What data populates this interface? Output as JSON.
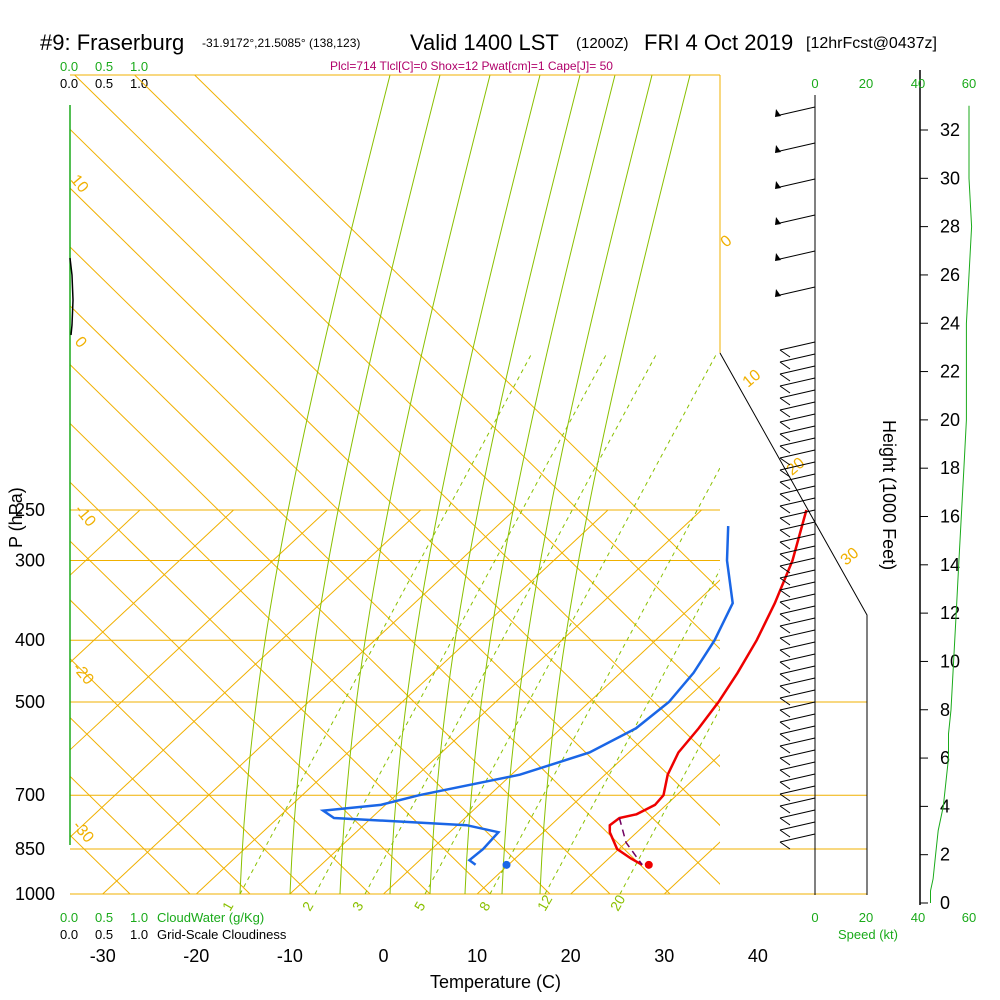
{
  "header": {
    "station": "#9: Fraserburg",
    "coords": "-31.9172°,21.5085° (138,123)",
    "valid": "Valid 1400 LST",
    "utc": "(1200Z)",
    "date": "FRI 4 Oct 2019",
    "forecast": "[12hrFcst@0437z]",
    "indices": "Plcl=714 Tlcl[C]=0 Shox=12 Pwat[cm]=1 Cape[J]= 50"
  },
  "colors": {
    "temperature": "#ee0000",
    "dewpoint": "#1a66e6",
    "isotherm": "#f0b000",
    "isobar": "#f0b000",
    "mixing_ratio": "#8ac000",
    "moist_adiabat": "#8ac000",
    "green_text": "#1aaa1a",
    "parcel": "#700060"
  },
  "legend": {
    "cloudwater_scale_top": [
      "0.0",
      "0.5",
      "1.0"
    ],
    "cloudiness_scale_top": [
      "0.0",
      "0.5",
      "1.0"
    ],
    "cloudwater_scale_bottom": [
      "0.0",
      "0.5",
      "1.0"
    ],
    "cloudiness_scale_bottom": [
      "0.0",
      "0.5",
      "1.0"
    ],
    "cloudwater_label": "CloudWater (g/Kg)",
    "cloudiness_label": "Grid-Scale Cloudiness",
    "speed_label": "Speed (kt)"
  },
  "chart_data": {
    "type": "line",
    "title": "",
    "xlabel": "Temperature (C)",
    "ylabel": "P (hPa)",
    "right_ylabel": "Height (1000 Feet)",
    "xlim": [
      -30,
      40
    ],
    "pressure_ticks": [
      250,
      300,
      400,
      500,
      700,
      850,
      1000
    ],
    "temperature_ticks": [
      -30,
      -20,
      -10,
      0,
      10,
      20,
      30,
      40
    ],
    "height_ticks": [
      0,
      2,
      4,
      6,
      8,
      10,
      12,
      14,
      16,
      18,
      20,
      22,
      24,
      26,
      28,
      30,
      32
    ],
    "speed_ticks_top": [
      "0",
      "20",
      "40",
      "60"
    ],
    "speed_ticks_bottom": [
      "0",
      "20",
      "40",
      "60"
    ],
    "isotherm_labels": [
      "10",
      "0",
      "-10",
      "-20",
      "-30"
    ],
    "adiabat_labels": [
      "0",
      "10",
      "20",
      "30"
    ],
    "mixing_ratio_labels": [
      "1",
      "2",
      "3",
      "5",
      "8",
      "12",
      "20"
    ],
    "series": [
      {
        "name": "Temperature",
        "points": [
          [
            250,
            1.2
          ],
          [
            300,
            5.5
          ],
          [
            350,
            8.5
          ],
          [
            400,
            10.8
          ],
          [
            450,
            12.5
          ],
          [
            500,
            13.8
          ],
          [
            550,
            14.7
          ],
          [
            600,
            15.3
          ],
          [
            650,
            16.7
          ],
          [
            700,
            18.6
          ],
          [
            725,
            18.8
          ],
          [
            750,
            17.9
          ],
          [
            760,
            16.5
          ],
          [
            780,
            16.3
          ],
          [
            800,
            17.1
          ],
          [
            850,
            19.8
          ],
          [
            880,
            22.4
          ],
          [
            900,
            24.3
          ]
        ]
      },
      {
        "name": "Dewpoint",
        "points": [
          [
            265,
            -5.3
          ],
          [
            300,
            -1.5
          ],
          [
            350,
            4.0
          ],
          [
            400,
            6.3
          ],
          [
            450,
            7.8
          ],
          [
            500,
            8.5
          ],
          [
            550,
            8.0
          ],
          [
            600,
            5.8
          ],
          [
            650,
            0.9
          ],
          [
            700,
            -7.5
          ],
          [
            725,
            -10.5
          ],
          [
            740,
            -16.0
          ],
          [
            760,
            -14.0
          ],
          [
            780,
            1.0
          ],
          [
            800,
            5.2
          ],
          [
            850,
            5.5
          ],
          [
            885,
            5.3
          ],
          [
            900,
            6.5
          ]
        ]
      }
    ],
    "parcel_path": [
      [
        760,
        16.5
      ],
      [
        830,
        20.0
      ],
      [
        900,
        24.3
      ]
    ],
    "surface_temperature": 25,
    "surface_dewpoint": 9.8,
    "wind_speed_profile": [
      [
        0,
        45
      ],
      [
        0.5,
        45
      ],
      [
        1,
        46
      ],
      [
        2,
        47
      ],
      [
        3,
        48
      ],
      [
        4,
        50
      ],
      [
        5,
        51
      ],
      [
        6,
        52
      ],
      [
        7,
        52
      ],
      [
        8,
        53
      ],
      [
        10,
        54
      ],
      [
        12,
        55
      ],
      [
        14,
        56
      ],
      [
        16,
        57
      ],
      [
        18,
        58
      ],
      [
        20,
        59
      ],
      [
        24,
        59
      ],
      [
        26,
        60
      ],
      [
        28,
        61
      ],
      [
        30,
        60
      ],
      [
        32,
        60
      ],
      [
        33,
        60
      ]
    ]
  }
}
